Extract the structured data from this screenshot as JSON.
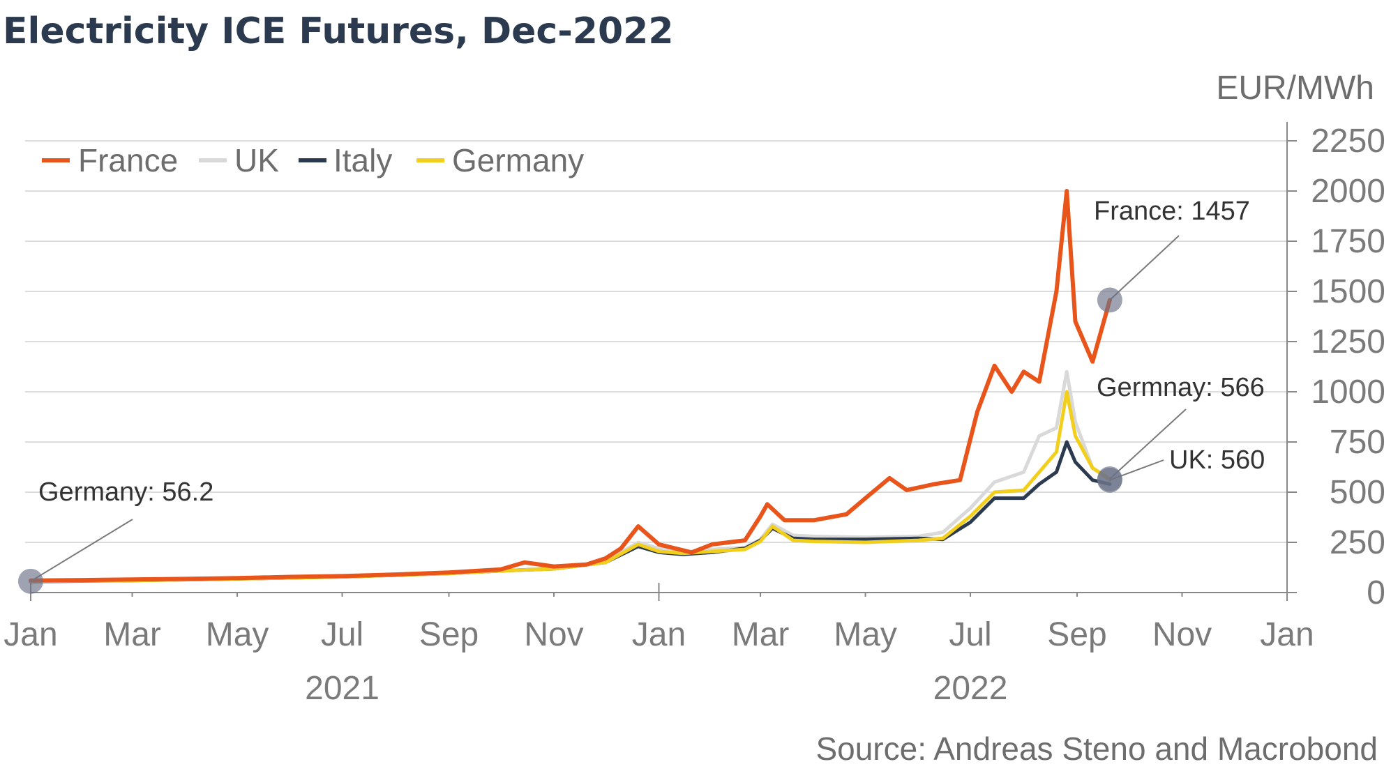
{
  "chart_data": {
    "type": "line",
    "title": "Electricity ICE Futures, Dec-2022",
    "ylabel": "EUR/MWh",
    "source": "Source: Andreas Steno and Macrobond",
    "ylim": [
      0,
      2250
    ],
    "yticks": [
      "0",
      "250",
      "500",
      "750",
      "1000",
      "1250",
      "1500",
      "1750",
      "2000",
      "2250"
    ],
    "xlim": [
      "2021-01-01",
      "2023-01-01"
    ],
    "xticks": [
      {
        "label": "Jan",
        "date": "2021-01-01"
      },
      {
        "label": "Mar",
        "date": "2021-03-01"
      },
      {
        "label": "May",
        "date": "2021-05-01"
      },
      {
        "label": "Jul",
        "date": "2021-07-01"
      },
      {
        "label": "Sep",
        "date": "2021-09-01"
      },
      {
        "label": "Nov",
        "date": "2021-11-01"
      },
      {
        "label": "Jan",
        "date": "2022-01-01"
      },
      {
        "label": "Mar",
        "date": "2022-03-01"
      },
      {
        "label": "May",
        "date": "2022-05-01"
      },
      {
        "label": "Jul",
        "date": "2022-07-01"
      },
      {
        "label": "Sep",
        "date": "2022-09-01"
      },
      {
        "label": "Nov",
        "date": "2022-11-01"
      },
      {
        "label": "Jan",
        "date": "2023-01-01"
      }
    ],
    "year_labels": [
      {
        "label": "2021",
        "date": "2021-07-01"
      },
      {
        "label": "2022",
        "date": "2022-07-01"
      }
    ],
    "grid": true,
    "legend_position": "top-left",
    "series": [
      {
        "name": "UK",
        "color": "#d9d9d9",
        "points": [
          [
            "2021-01-01",
            55
          ],
          [
            "2021-03-01",
            60
          ],
          [
            "2021-05-01",
            68
          ],
          [
            "2021-07-01",
            78
          ],
          [
            "2021-09-01",
            95
          ],
          [
            "2021-10-01",
            108
          ],
          [
            "2021-11-01",
            120
          ],
          [
            "2021-12-01",
            155
          ],
          [
            "2021-12-20",
            250
          ],
          [
            "2022-01-01",
            220
          ],
          [
            "2022-01-15",
            200
          ],
          [
            "2022-02-01",
            215
          ],
          [
            "2022-02-20",
            225
          ],
          [
            "2022-03-01",
            265
          ],
          [
            "2022-03-08",
            340
          ],
          [
            "2022-03-20",
            285
          ],
          [
            "2022-04-01",
            280
          ],
          [
            "2022-05-01",
            275
          ],
          [
            "2022-06-01",
            280
          ],
          [
            "2022-06-15",
            300
          ],
          [
            "2022-07-01",
            420
          ],
          [
            "2022-07-15",
            550
          ],
          [
            "2022-08-01",
            600
          ],
          [
            "2022-08-10",
            780
          ],
          [
            "2022-08-20",
            820
          ],
          [
            "2022-08-26",
            1100
          ],
          [
            "2022-08-31",
            850
          ],
          [
            "2022-09-10",
            620
          ],
          [
            "2022-09-20",
            560
          ]
        ]
      },
      {
        "name": "Italy",
        "color": "#2b3a4e",
        "points": [
          [
            "2021-01-01",
            55
          ],
          [
            "2021-03-01",
            60
          ],
          [
            "2021-05-01",
            68
          ],
          [
            "2021-07-01",
            78
          ],
          [
            "2021-09-01",
            95
          ],
          [
            "2021-10-01",
            108
          ],
          [
            "2021-11-01",
            118
          ],
          [
            "2021-12-01",
            150
          ],
          [
            "2021-12-20",
            230
          ],
          [
            "2022-01-01",
            200
          ],
          [
            "2022-01-15",
            190
          ],
          [
            "2022-02-01",
            200
          ],
          [
            "2022-02-20",
            220
          ],
          [
            "2022-03-01",
            260
          ],
          [
            "2022-03-08",
            320
          ],
          [
            "2022-03-20",
            270
          ],
          [
            "2022-04-01",
            265
          ],
          [
            "2022-05-01",
            265
          ],
          [
            "2022-06-01",
            270
          ],
          [
            "2022-06-15",
            265
          ],
          [
            "2022-07-01",
            350
          ],
          [
            "2022-07-15",
            470
          ],
          [
            "2022-08-01",
            470
          ],
          [
            "2022-08-10",
            540
          ],
          [
            "2022-08-20",
            600
          ],
          [
            "2022-08-26",
            750
          ],
          [
            "2022-08-31",
            650
          ],
          [
            "2022-09-10",
            560
          ],
          [
            "2022-09-20",
            540
          ]
        ]
      },
      {
        "name": "Germany",
        "color": "#f2cf1d",
        "points": [
          [
            "2021-01-01",
            56.2
          ],
          [
            "2021-03-01",
            60
          ],
          [
            "2021-05-01",
            68
          ],
          [
            "2021-07-01",
            78
          ],
          [
            "2021-09-01",
            95
          ],
          [
            "2021-10-01",
            108
          ],
          [
            "2021-11-01",
            118
          ],
          [
            "2021-12-01",
            150
          ],
          [
            "2021-12-20",
            240
          ],
          [
            "2022-01-01",
            205
          ],
          [
            "2022-01-15",
            195
          ],
          [
            "2022-02-01",
            205
          ],
          [
            "2022-02-20",
            215
          ],
          [
            "2022-03-01",
            255
          ],
          [
            "2022-03-08",
            330
          ],
          [
            "2022-03-20",
            260
          ],
          [
            "2022-04-01",
            255
          ],
          [
            "2022-05-01",
            250
          ],
          [
            "2022-06-01",
            260
          ],
          [
            "2022-06-15",
            270
          ],
          [
            "2022-07-01",
            380
          ],
          [
            "2022-07-15",
            500
          ],
          [
            "2022-08-01",
            510
          ],
          [
            "2022-08-10",
            600
          ],
          [
            "2022-08-20",
            700
          ],
          [
            "2022-08-26",
            1000
          ],
          [
            "2022-08-31",
            780
          ],
          [
            "2022-09-10",
            620
          ],
          [
            "2022-09-20",
            566
          ]
        ]
      },
      {
        "name": "France",
        "color": "#e8541a",
        "points": [
          [
            "2021-01-01",
            60
          ],
          [
            "2021-02-01",
            62
          ],
          [
            "2021-03-01",
            65
          ],
          [
            "2021-04-01",
            68
          ],
          [
            "2021-05-01",
            72
          ],
          [
            "2021-06-01",
            78
          ],
          [
            "2021-07-01",
            82
          ],
          [
            "2021-08-01",
            90
          ],
          [
            "2021-09-01",
            100
          ],
          [
            "2021-10-01",
            115
          ],
          [
            "2021-10-15",
            150
          ],
          [
            "2021-11-01",
            130
          ],
          [
            "2021-11-20",
            140
          ],
          [
            "2021-12-01",
            170
          ],
          [
            "2021-12-10",
            220
          ],
          [
            "2021-12-20",
            330
          ],
          [
            "2022-01-01",
            240
          ],
          [
            "2022-01-20",
            200
          ],
          [
            "2022-02-01",
            240
          ],
          [
            "2022-02-20",
            260
          ],
          [
            "2022-03-01",
            380
          ],
          [
            "2022-03-05",
            440
          ],
          [
            "2022-03-15",
            360
          ],
          [
            "2022-04-01",
            360
          ],
          [
            "2022-04-20",
            390
          ],
          [
            "2022-05-01",
            470
          ],
          [
            "2022-05-15",
            570
          ],
          [
            "2022-05-25",
            510
          ],
          [
            "2022-06-10",
            540
          ],
          [
            "2022-06-25",
            560
          ],
          [
            "2022-07-05",
            900
          ],
          [
            "2022-07-15",
            1130
          ],
          [
            "2022-07-25",
            1000
          ],
          [
            "2022-08-01",
            1100
          ],
          [
            "2022-08-10",
            1050
          ],
          [
            "2022-08-20",
            1500
          ],
          [
            "2022-08-26",
            2000
          ],
          [
            "2022-08-31",
            1350
          ],
          [
            "2022-09-10",
            1150
          ],
          [
            "2022-09-20",
            1457
          ]
        ]
      }
    ],
    "annotations": [
      {
        "text": "Germany: 56.2",
        "series": "Germany"
      },
      {
        "text": "France: 1457",
        "series": "France"
      },
      {
        "text": "Germnay: 566",
        "series": "Germany"
      },
      {
        "text": "UK: 560",
        "series": "UK"
      }
    ]
  }
}
